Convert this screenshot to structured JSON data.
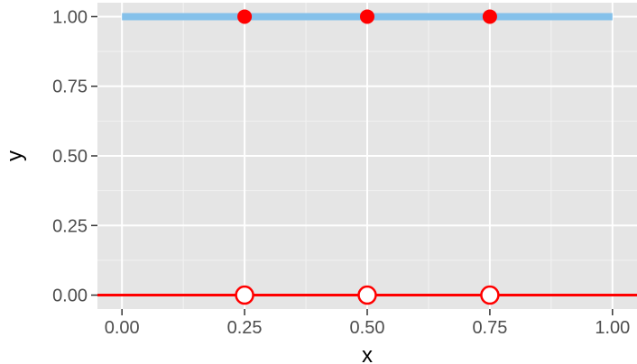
{
  "chart_data": {
    "type": "line",
    "title": "",
    "xlabel": "x",
    "ylabel": "y",
    "xlim": [
      -0.05,
      1.05
    ],
    "ylim": [
      -0.05,
      1.05
    ],
    "grid": true,
    "x_ticks": [
      "0.00",
      "0.25",
      "0.50",
      "0.75",
      "1.00"
    ],
    "y_ticks": [
      "0.00",
      "0.25",
      "0.50",
      "0.75",
      "1.00"
    ],
    "series": [
      {
        "kind": "line",
        "color": "#85c1ea",
        "x": [
          0,
          1
        ],
        "y": [
          1,
          1
        ]
      },
      {
        "kind": "line",
        "color": "#ff0000",
        "x": [
          -0.05,
          1.05
        ],
        "y": [
          0,
          0
        ]
      },
      {
        "kind": "points",
        "marker": "filled-circle",
        "color": "#ff0000",
        "x": [
          0.25,
          0.5,
          0.75
        ],
        "y": [
          1,
          1,
          1
        ]
      },
      {
        "kind": "points",
        "marker": "open-circle",
        "color": "#ff0000",
        "x": [
          0.25,
          0.5,
          0.75
        ],
        "y": [
          0,
          0,
          0
        ]
      }
    ]
  }
}
